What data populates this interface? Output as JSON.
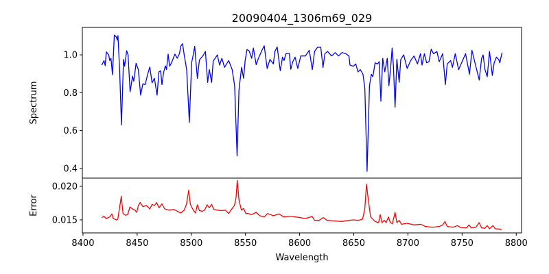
{
  "chart_data": [
    {
      "type": "line",
      "title": "20090404_1306m69_029",
      "xlabel": "",
      "ylabel": "Spectrum",
      "xlim": [
        8399.4,
        8804.9
      ],
      "ylim": [
        0.349,
        1.145
      ],
      "yticks": [
        0.4,
        0.6,
        0.8,
        1.0
      ],
      "ytick_labels": [
        "0.4",
        "0.6",
        "0.8",
        "1.0"
      ],
      "grid": false,
      "color": "#0000ff",
      "x": [
        8417.3,
        8419.4,
        8420.5,
        8421.5,
        8423.7,
        8424.7,
        8425.8,
        8427.2,
        8428.9,
        8430.6,
        8431.7,
        8432.3,
        8433.8,
        8435.5,
        8437.4,
        8438.4,
        8440.3,
        8441.6,
        8443.5,
        8445.8,
        8446.9,
        8449.0,
        8451.1,
        8453.2,
        8455.3,
        8457.4,
        8459.6,
        8461.7,
        8463.8,
        8465.9,
        8468.4,
        8470.1,
        8471.6,
        8472.9,
        8474.3,
        8476.0,
        8477.1,
        8478.6,
        8480.0,
        8481.7,
        8484.9,
        8487.0,
        8489.1,
        8490.2,
        8491.9,
        8493.4,
        8495.7,
        8498.2,
        8500.3,
        8501.8,
        8503.1,
        8505.6,
        8507.5,
        8511.3,
        8513.0,
        8515.1,
        8516.6,
        8518.7,
        8520.2,
        8524.0,
        8526.1,
        8528.2,
        8530.7,
        8534.5,
        8537.7,
        8540.0,
        8542.3,
        8544.0,
        8546.4,
        8548.3,
        8549.7,
        8551.4,
        8553.5,
        8555.7,
        8557.3,
        8559.9,
        8562.0,
        8565.2,
        8567.3,
        8570.0,
        8572.6,
        8575.7,
        8577.2,
        8579.3,
        8582.1,
        8584.2,
        8585.6,
        8587.3,
        8590.5,
        8591.8,
        8593.7,
        8595.8,
        8598.3,
        8601.1,
        8605.3,
        8608.9,
        8611.7,
        8613.8,
        8616.5,
        8619.5,
        8621.6,
        8623.3,
        8625.8,
        8629.6,
        8632.8,
        8635.9,
        8639.1,
        8642.7,
        8645.5,
        8646.5,
        8649.7,
        8651.8,
        8653.9,
        8656.0,
        8658.5,
        8660.2,
        8662.3,
        8664.5,
        8666.2,
        8667.6,
        8669.7,
        8671.9,
        8673.5,
        8675.0,
        8676.7,
        8678.6,
        8680.9,
        8682.4,
        8684.1,
        8685.4,
        8686.6,
        8688.1,
        8689.8,
        8691.9,
        8693.4,
        8696.1,
        8699.3,
        8702.5,
        8705.6,
        8708.8,
        8711.6,
        8713.0,
        8715.2,
        8717.3,
        8719.4,
        8721.5,
        8723.6,
        8726.8,
        8728.9,
        8732.1,
        8734.6,
        8736.3,
        8739.4,
        8741.1,
        8743.7,
        8746.8,
        8750.0,
        8753.2,
        8756.8,
        8759.1,
        8761.6,
        8763.7,
        8765.8,
        8768.0,
        8769.4,
        8771.1,
        8773.2,
        8775.3,
        8777.9,
        8779.6,
        8781.7,
        8783.8,
        8784.8,
        8786.9
      ],
      "y": [
        0.946,
        0.97,
        0.943,
        1.016,
        1.0,
        0.97,
        0.982,
        0.895,
        1.105,
        1.096,
        1.078,
        1.102,
        0.922,
        0.63,
        0.976,
        0.94,
        1.022,
        1.0,
        0.805,
        0.888,
        0.861,
        0.955,
        0.922,
        0.787,
        0.847,
        0.843,
        0.895,
        0.936,
        0.852,
        0.876,
        0.787,
        0.91,
        0.916,
        0.843,
        0.903,
        0.942,
        0.922,
        1.004,
        0.94,
        0.958,
        1.004,
        0.982,
        1.008,
        1.045,
        1.059,
        1.0,
        0.922,
        0.644,
        0.96,
        1.0,
        1.045,
        0.876,
        0.973,
        1.0,
        1.018,
        0.855,
        0.922,
        0.855,
        0.967,
        1.0,
        0.946,
        0.982,
        0.934,
        0.97,
        0.922,
        0.837,
        0.466,
        0.813,
        0.934,
        0.876,
        0.97,
        1.028,
        1.02,
        0.982,
        1.036,
        0.948,
        0.982,
        1.024,
        1.048,
        0.928,
        0.976,
        0.952,
        1.018,
        1.042,
        0.916,
        0.988,
        0.97,
        1.006,
        1.008,
        0.924,
        0.964,
        0.988,
        0.928,
        0.994,
        0.994,
        1.024,
        0.922,
        1.018,
        1.04,
        1.04,
        0.934,
        1.006,
        1.018,
        0.994,
        1.012,
        0.994,
        1.012,
        1.006,
        0.994,
        0.946,
        0.94,
        0.952,
        0.91,
        0.922,
        0.898,
        0.825,
        0.385,
        0.837,
        0.898,
        0.885,
        0.958,
        0.952,
        0.964,
        0.755,
        0.982,
        0.91,
        0.982,
        0.837,
        0.934,
        1.036,
        0.94,
        0.723,
        0.976,
        0.855,
        0.976,
        1.0,
        0.928,
        0.97,
        0.994,
        0.952,
        1.006,
        0.946,
        1.006,
        0.958,
        0.964,
        1.03,
        1.006,
        1.018,
        0.964,
        1.006,
        0.843,
        0.952,
        0.97,
        0.934,
        1.006,
        0.922,
        0.964,
        1.006,
        0.898,
        1.024,
        0.964,
        0.916,
        0.867,
        0.982,
        1.0,
        0.922,
        0.885,
        1.018,
        0.891,
        0.958,
        0.988,
        0.976,
        0.958,
        1.012
      ]
    },
    {
      "type": "line",
      "title": "",
      "xlabel": "Wavelength",
      "ylabel": "Error",
      "xlim": [
        8399.4,
        8804.9
      ],
      "ylim": [
        0.01306,
        0.02122
      ],
      "xticks": [
        8400,
        8450,
        8500,
        8550,
        8600,
        8650,
        8700,
        8750,
        8800
      ],
      "xtick_labels": [
        "8400",
        "8450",
        "8500",
        "8550",
        "8600",
        "8650",
        "8700",
        "8750",
        "8800"
      ],
      "yticks": [
        0.015,
        0.02
      ],
      "ytick_labels": [
        "0.015",
        "0.020"
      ],
      "grid": false,
      "color": "#ff0000",
      "x": [
        8417.3,
        8419.4,
        8421.5,
        8424.7,
        8426.8,
        8427.9,
        8431.0,
        8432.1,
        8433.6,
        8435.3,
        8437.0,
        8439.5,
        8441.2,
        8443.3,
        8445.8,
        8447.9,
        8449.6,
        8451.1,
        8452.8,
        8455.3,
        8458.5,
        8461.7,
        8463.8,
        8465.9,
        8468.0,
        8470.1,
        8472.9,
        8475.4,
        8479.6,
        8483.8,
        8487.0,
        8490.2,
        8493.4,
        8495.5,
        8497.6,
        8499.1,
        8501.8,
        8503.9,
        8505.6,
        8507.5,
        8510.2,
        8512.4,
        8514.5,
        8516.6,
        8518.7,
        8520.8,
        8524.0,
        8528.2,
        8531.4,
        8534.5,
        8536.6,
        8539.8,
        8541.3,
        8542.4,
        8544.0,
        8546.2,
        8548.3,
        8550.4,
        8552.5,
        8555.7,
        8559.9,
        8563.1,
        8567.3,
        8570.5,
        8575.7,
        8581.0,
        8585.3,
        8591.6,
        8599.0,
        8605.3,
        8611.6,
        8613.8,
        8618.0,
        8621.8,
        8625.4,
        8632.8,
        8639.1,
        8645.4,
        8649.7,
        8653.9,
        8658.1,
        8660.2,
        8661.7,
        8663.4,
        8665.5,
        8669.7,
        8672.9,
        8674.4,
        8676.1,
        8678.2,
        8679.9,
        8682.0,
        8683.5,
        8685.6,
        8688.1,
        8689.8,
        8691.9,
        8694.0,
        8699.3,
        8705.7,
        8712.0,
        8716.2,
        8722.6,
        8728.9,
        8732.1,
        8734.2,
        8736.3,
        8741.6,
        8745.8,
        8749.0,
        8754.2,
        8756.3,
        8758.5,
        8762.7,
        8765.8,
        8768.0,
        8771.1,
        8773.2,
        8775.3,
        8778.5,
        8780.6,
        8784.8,
        8786.5
      ],
      "y": [
        0.01534,
        0.01551,
        0.0152,
        0.01544,
        0.01589,
        0.0152,
        0.015,
        0.0151,
        0.01663,
        0.0185,
        0.01595,
        0.01568,
        0.01578,
        0.01691,
        0.01663,
        0.01646,
        0.01612,
        0.01714,
        0.01759,
        0.01697,
        0.01714,
        0.01663,
        0.01731,
        0.01714,
        0.01759,
        0.0168,
        0.01738,
        0.01663,
        0.01646,
        0.01657,
        0.01629,
        0.01602,
        0.01646,
        0.01731,
        0.01942,
        0.01731,
        0.01646,
        0.01602,
        0.01725,
        0.01636,
        0.01629,
        0.01646,
        0.01725,
        0.0168,
        0.01731,
        0.01657,
        0.01646,
        0.01636,
        0.01646,
        0.01595,
        0.01646,
        0.01714,
        0.01833,
        0.02088,
        0.01799,
        0.01646,
        0.0167,
        0.01595,
        0.01595,
        0.01578,
        0.01612,
        0.01561,
        0.01544,
        0.01595,
        0.01561,
        0.01589,
        0.01544,
        0.01555,
        0.01538,
        0.0152,
        0.01551,
        0.01493,
        0.01493,
        0.01534,
        0.01493,
        0.01483,
        0.01476,
        0.01493,
        0.015,
        0.01493,
        0.0151,
        0.01663,
        0.02031,
        0.01799,
        0.01544,
        0.01476,
        0.01459,
        0.01578,
        0.01459,
        0.01493,
        0.01459,
        0.01544,
        0.01469,
        0.01442,
        0.01612,
        0.01459,
        0.01493,
        0.01435,
        0.01449,
        0.01425,
        0.01435,
        0.01401,
        0.01391,
        0.01401,
        0.01425,
        0.01476,
        0.01401,
        0.01391,
        0.01415,
        0.01384,
        0.01381,
        0.01425,
        0.01381,
        0.01391,
        0.01459,
        0.01381,
        0.01374,
        0.01415,
        0.01367,
        0.01415,
        0.01367,
        0.01364,
        0.01347
      ]
    }
  ]
}
